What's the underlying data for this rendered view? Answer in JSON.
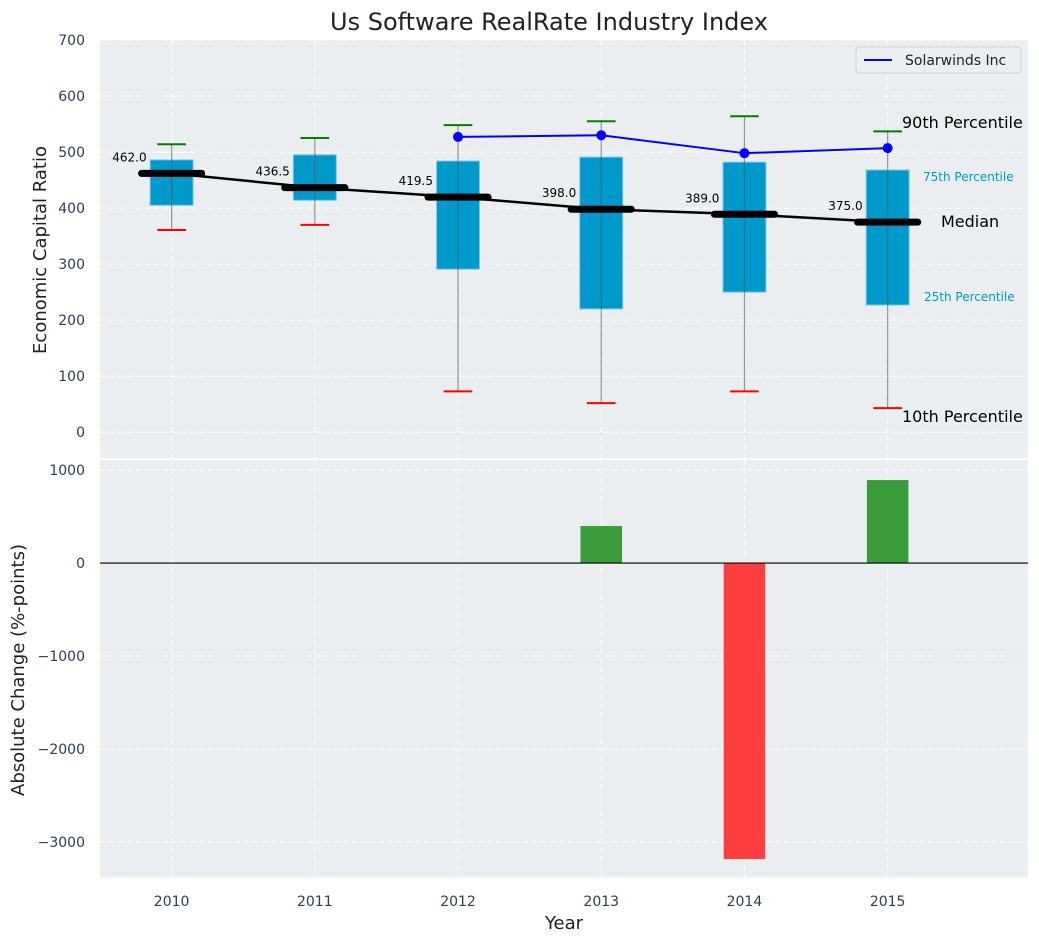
{
  "chart_data": [
    {
      "type": "box",
      "title": "Us Software RealRate Industry Index",
      "xlabel": "",
      "ylabel": "Economic Capital Ratio",
      "ylim": [
        -46,
        700
      ],
      "yticks": [
        0,
        100,
        200,
        300,
        400,
        500,
        600,
        700
      ],
      "grid": true,
      "categories": [
        "2010",
        "2011",
        "2012",
        "2013",
        "2014",
        "2015"
      ],
      "p10": [
        361,
        370,
        73,
        52,
        73,
        43
      ],
      "p25": [
        405,
        414,
        291,
        220,
        250,
        227
      ],
      "median": [
        462.0,
        436.5,
        419.5,
        398.0,
        389.0,
        375.0
      ],
      "median_labels": [
        "462.0",
        "436.5",
        "419.5",
        "398.0",
        "389.0",
        "375.0"
      ],
      "p75": [
        486,
        495,
        484,
        491,
        482,
        468
      ],
      "p90": [
        514,
        525,
        548,
        555,
        564,
        537
      ],
      "series": [
        {
          "name": "Solarwinds Inc",
          "color": "#0000ff",
          "values": [
            null,
            null,
            527,
            530,
            498,
            507
          ]
        }
      ],
      "legend": {
        "placement": "top-right",
        "entries": [
          "Solarwinds Inc"
        ]
      },
      "annotations": {
        "p90": "90th Percentile",
        "p75": "75th Percentile",
        "median": "Median",
        "p25": "25th Percentile",
        "p10": "10th Percentile"
      },
      "colors": {
        "box": "#0099cc",
        "p90": "#008000",
        "p10": "#ff0000",
        "median": "#000000",
        "bg": "#eaeef0"
      }
    },
    {
      "type": "bar",
      "xlabel": "Year",
      "ylabel": "Absolute Change (%-points)",
      "ylim": [
        -3376,
        1108
      ],
      "yticks": [
        1000,
        0,
        -1000,
        -2000,
        -3000
      ],
      "ytick_labels": [
        "1000",
        "0",
        "−1000",
        "−2000",
        "−3000"
      ],
      "categories": [
        "2010",
        "2011",
        "2012",
        "2013",
        "2014",
        "2015"
      ],
      "values": [
        0,
        0,
        0,
        398,
        -3183,
        892
      ],
      "colors": {
        "positive": "#3a9c3a",
        "negative": "#ff3f3f"
      }
    }
  ]
}
